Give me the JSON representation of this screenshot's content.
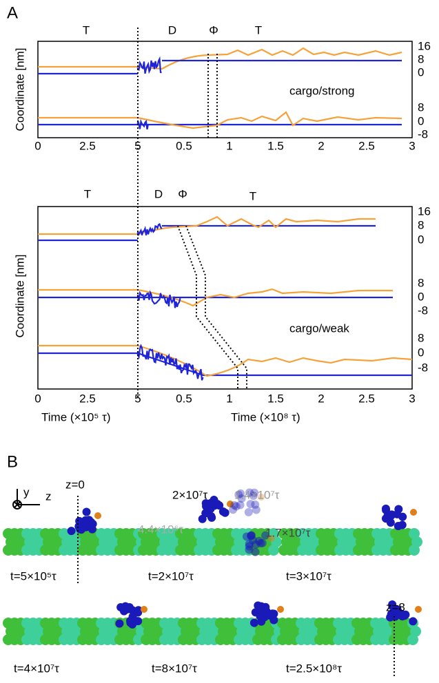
{
  "panel_a": {
    "label": "A",
    "top": {
      "phase_labels": [
        "T",
        "D",
        "Φ",
        "T"
      ],
      "annotation": "cargo/strong",
      "right_ticks": [
        "16",
        "8",
        "0",
        "8",
        "0",
        "-8"
      ]
    },
    "bottom": {
      "phase_labels": [
        "T",
        "D",
        "Φ",
        "T"
      ],
      "annotation": "cargo/weak",
      "right_ticks": [
        "16",
        "8",
        "0",
        "8",
        "0",
        "-8",
        "8",
        "0",
        "-8"
      ]
    },
    "y_label": "Coordinate [nm]",
    "x_ticks_left": [
      "0",
      "2.5",
      "5"
    ],
    "x_ticks_right": [
      "0.5",
      "1",
      "1.5",
      "2",
      "2.5",
      "3"
    ],
    "x_label_left": "Time (×10⁵ τ)",
    "x_label_right": "Time (×10⁸ τ)"
  },
  "panel_b": {
    "label": "B",
    "axis_y": "y",
    "axis_z": "z",
    "z_start": "z=0",
    "z_end": "z=8",
    "snapshots": [
      "t=5×10⁵τ",
      "t=2×10⁷τ",
      "t=3×10⁷τ",
      "t=4×10⁷τ",
      "t=8×10⁷τ",
      "t=2.5×10⁸τ"
    ],
    "overlay_labels": [
      "2×10⁷τ",
      "1.4×10⁷τ",
      "1.7×10⁷τ",
      "4.4×10⁶τ"
    ]
  }
}
